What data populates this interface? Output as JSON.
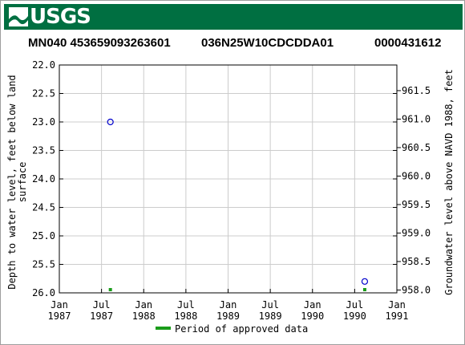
{
  "header": {
    "agency": "USGS",
    "site_id": "MN040 453659093263601",
    "station_name": "036N25W10CDCDDA01",
    "station_number": "0000431612"
  },
  "colors": {
    "banner": "#006f41",
    "points": "#0000cc",
    "approved": "#1a9c1a",
    "grid": "#cccccc"
  },
  "chart_data": {
    "type": "scatter",
    "ylabel": "Depth to water level, feet below land surface",
    "ylabel_lines": [
      "Depth to water level, feet below land",
      "surface"
    ],
    "y2label": "Groundwater level above NAVD 1988, feet",
    "ylim": [
      22.0,
      26.0
    ],
    "y_inverted": true,
    "y_ticks": [
      "22.0",
      "22.5",
      "23.0",
      "23.5",
      "24.0",
      "24.5",
      "25.0",
      "25.5",
      "26.0"
    ],
    "y2lim": [
      957.95,
      961.95
    ],
    "y2_ticks": [
      "958.0",
      "958.5",
      "959.0",
      "959.5",
      "960.0",
      "960.5",
      "961.0",
      "961.5"
    ],
    "x_ticks": [
      {
        "line1": "Jan",
        "line2": "1987"
      },
      {
        "line1": "Jul",
        "line2": "1987"
      },
      {
        "line1": "Jan",
        "line2": "1988"
      },
      {
        "line1": "Jul",
        "line2": "1988"
      },
      {
        "line1": "Jan",
        "line2": "1989"
      },
      {
        "line1": "Jul",
        "line2": "1989"
      },
      {
        "line1": "Jan",
        "line2": "1990"
      },
      {
        "line1": "Jul",
        "line2": "1990"
      },
      {
        "line1": "Jan",
        "line2": "1991"
      }
    ],
    "points": [
      {
        "date": "1987-08-10",
        "depth": 23.0
      },
      {
        "date": "1990-08-15",
        "depth": 25.8
      }
    ],
    "approved_periods": [
      {
        "date": "1987-08-10"
      },
      {
        "date": "1990-08-15"
      }
    ],
    "legend": {
      "label": "Period of approved data",
      "position": "bottom-center"
    },
    "grid": true
  }
}
